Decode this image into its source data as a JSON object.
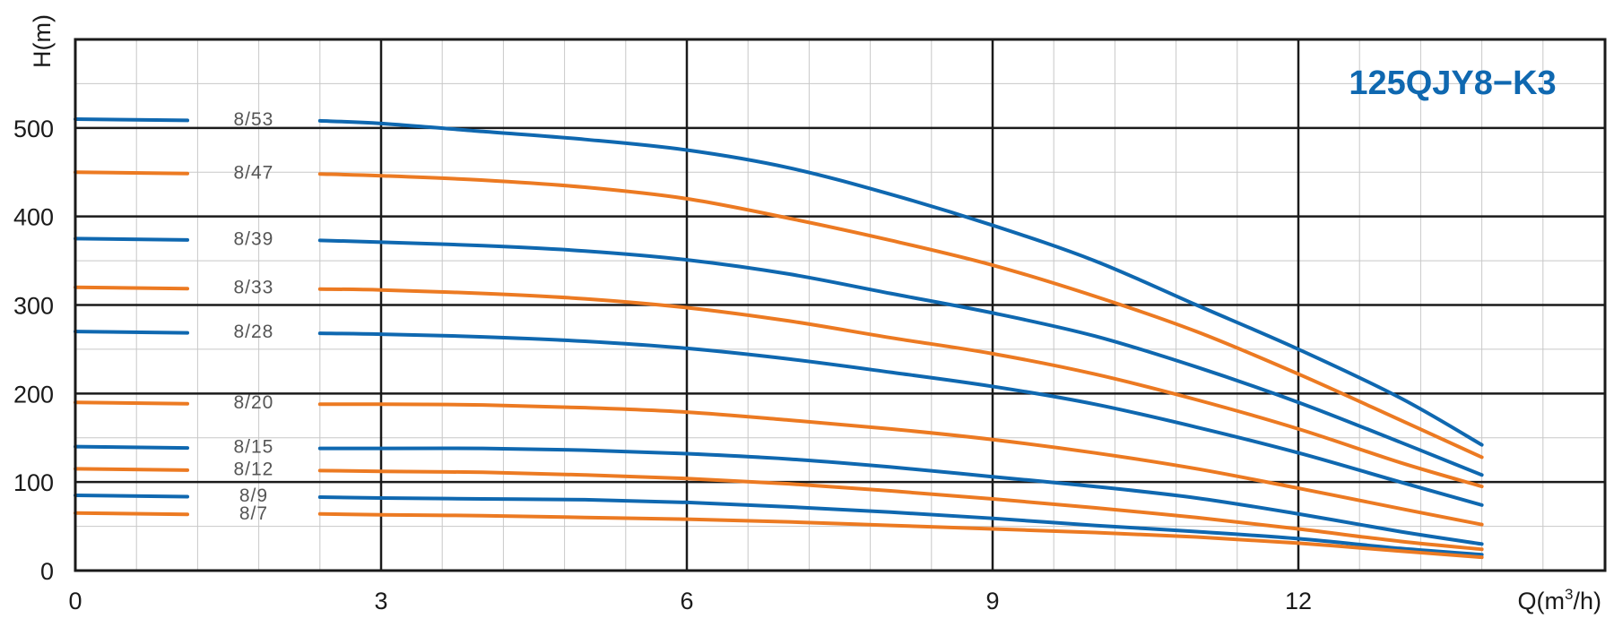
{
  "chart_data": {
    "type": "line",
    "title": "125QJY8−K3",
    "xlabel": "Q(m³/h)",
    "xlabel_parts": {
      "main": "Q(m",
      "sup": "3",
      "tail": "/h)"
    },
    "ylabel": "H(m)",
    "xlim": [
      0,
      15
    ],
    "ylim": [
      0,
      600
    ],
    "x_ticks": [
      "0",
      "3",
      "6",
      "9",
      "12"
    ],
    "y_ticks": [
      "0",
      "100",
      "200",
      "300",
      "400",
      "500"
    ],
    "grid": true,
    "colors": {
      "blue": "#0f68b0",
      "orange": "#ec7a22",
      "grid_major": "#1a1a1a",
      "grid_minor": "#c8c8c8",
      "title": "#0f68b0"
    },
    "series": [
      {
        "name": "8/53",
        "color": "blue",
        "shutoff": 510,
        "x": [
          2.4,
          3,
          4,
          5,
          6,
          7,
          8,
          9,
          10,
          11,
          12,
          13,
          13.8
        ],
        "y": [
          508,
          505,
          496,
          487,
          475,
          455,
          425,
          390,
          350,
          300,
          250,
          195,
          142
        ]
      },
      {
        "name": "8/47",
        "color": "orange",
        "shutoff": 450,
        "x": [
          2.4,
          3,
          4,
          5,
          6,
          7,
          8,
          9,
          10,
          11,
          12,
          13,
          13.8
        ],
        "y": [
          448,
          446,
          441,
          433,
          420,
          398,
          373,
          345,
          310,
          270,
          222,
          170,
          128
        ]
      },
      {
        "name": "8/39",
        "color": "blue",
        "shutoff": 375,
        "x": [
          2.4,
          3,
          4,
          5,
          6,
          7,
          8,
          9,
          10,
          11,
          12,
          13,
          13.8
        ],
        "y": [
          373,
          371,
          367,
          361,
          351,
          335,
          313,
          291,
          265,
          230,
          190,
          145,
          108
        ]
      },
      {
        "name": "8/33",
        "color": "orange",
        "shutoff": 320,
        "x": [
          2.4,
          3,
          4,
          5,
          6,
          7,
          8,
          9,
          10,
          11,
          12,
          13,
          13.8
        ],
        "y": [
          318,
          317,
          313,
          307,
          297,
          282,
          263,
          245,
          222,
          193,
          160,
          122,
          95
        ]
      },
      {
        "name": "8/28",
        "color": "blue",
        "shutoff": 270,
        "x": [
          2.4,
          3,
          4,
          5,
          6,
          7,
          8,
          9,
          10,
          11,
          12,
          13,
          13.8
        ],
        "y": [
          268,
          267,
          264,
          259,
          251,
          239,
          224,
          208,
          188,
          162,
          133,
          100,
          74
        ]
      },
      {
        "name": "8/20",
        "color": "orange",
        "shutoff": 190,
        "x": [
          2.4,
          3,
          4,
          5,
          6,
          7,
          8,
          9,
          10,
          11,
          12,
          13,
          13.8
        ],
        "y": [
          188,
          188,
          187,
          184,
          179,
          170,
          160,
          148,
          133,
          115,
          93,
          70,
          52
        ]
      },
      {
        "name": "8/15",
        "color": "blue",
        "shutoff": 140,
        "x": [
          2.4,
          3,
          4,
          5,
          6,
          7,
          8,
          9,
          10,
          11,
          12,
          13,
          13.8
        ],
        "y": [
          138,
          138,
          138,
          136,
          132,
          126,
          117,
          106,
          95,
          82,
          64,
          44,
          30
        ]
      },
      {
        "name": "8/12",
        "color": "orange",
        "shutoff": 115,
        "x": [
          2.4,
          3,
          4,
          5,
          6,
          7,
          8,
          9,
          10,
          11,
          12,
          13,
          13.8
        ],
        "y": [
          113,
          112,
          111,
          108,
          104,
          98,
          90,
          81,
          71,
          60,
          47,
          33,
          24
        ]
      },
      {
        "name": "8/9",
        "color": "blue",
        "shutoff": 85,
        "x": [
          2.4,
          3,
          4,
          5,
          6,
          7,
          8,
          9,
          10,
          11,
          12,
          13,
          13.8
        ],
        "y": [
          83,
          82,
          81,
          80,
          77,
          72,
          66,
          59,
          51,
          44,
          36,
          25,
          18
        ]
      },
      {
        "name": "8/7",
        "color": "orange",
        "shutoff": 65,
        "x": [
          2.4,
          3,
          4,
          5,
          6,
          7,
          8,
          9,
          10,
          11,
          12,
          13,
          13.8
        ],
        "y": [
          64,
          63,
          62,
          60,
          58,
          55,
          51,
          47,
          43,
          38,
          31,
          22,
          15
        ]
      }
    ]
  }
}
